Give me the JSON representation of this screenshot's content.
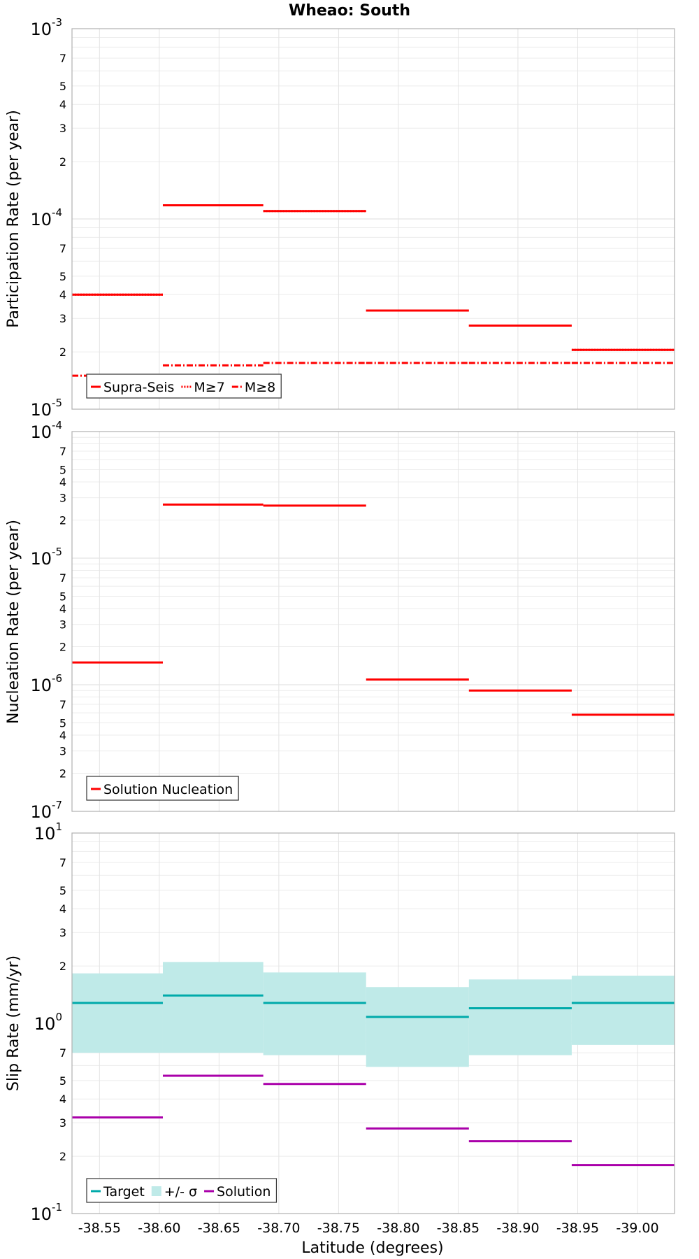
{
  "chart_data": [
    {
      "type": "line",
      "title": "Wheao: South",
      "ylabel": "Participation Rate (per year)",
      "ylog": true,
      "ylim": [
        1e-05,
        0.001
      ],
      "xlim": [
        -38.527,
        -39.031
      ],
      "x_bins": [
        -38.527,
        -38.603,
        -38.687,
        -38.773,
        -38.859,
        -38.945,
        -39.031
      ],
      "grid": true,
      "legend": {
        "placement": "bottom-left",
        "entries": [
          "Supra-Seis",
          "M≥7",
          "M≥8"
        ]
      },
      "series": [
        {
          "name": "Supra-Seis",
          "color": "#ff0000",
          "style": "solid",
          "values": [
            4e-05,
            0.000118,
            0.00011,
            3.3e-05,
            2.75e-05,
            2.05e-05
          ]
        },
        {
          "name": "M≥7",
          "color": "#ff0000",
          "style": "dotted",
          "values": [
            4e-05,
            0.000118,
            0.00011,
            3.3e-05,
            2.75e-05,
            2.05e-05
          ]
        },
        {
          "name": "M≥8",
          "color": "#ff0000",
          "style": "dashdot",
          "values": [
            1.5e-05,
            1.7e-05,
            1.75e-05,
            1.75e-05,
            1.75e-05,
            1.75e-05
          ]
        }
      ]
    },
    {
      "type": "line",
      "ylabel": "Nucleation Rate (per year)",
      "ylog": true,
      "ylim": [
        1e-07,
        0.0001
      ],
      "xlim": [
        -38.527,
        -39.031
      ],
      "x_bins": [
        -38.527,
        -38.603,
        -38.687,
        -38.773,
        -38.859,
        -38.945,
        -39.031
      ],
      "grid": true,
      "legend": {
        "placement": "bottom-left",
        "entries": [
          "Solution Nucleation"
        ]
      },
      "series": [
        {
          "name": "Solution Nucleation",
          "color": "#ff0000",
          "style": "solid",
          "values": [
            1.5e-06,
            2.65e-05,
            2.6e-05,
            1.1e-06,
            9e-07,
            5.8e-07
          ]
        }
      ]
    },
    {
      "type": "area",
      "ylabel": "Slip Rate (mm/yr)",
      "xlabel": "Latitude (degrees)",
      "ylog": true,
      "ylim": [
        0.1,
        10
      ],
      "xlim": [
        -38.527,
        -39.031
      ],
      "x_bins": [
        -38.527,
        -38.603,
        -38.687,
        -38.773,
        -38.859,
        -38.945,
        -39.031
      ],
      "grid": true,
      "legend": {
        "placement": "bottom-left",
        "entries": [
          "Target",
          "+/- σ",
          "Solution"
        ]
      },
      "series": [
        {
          "name": "Target",
          "color": "#00aaaa",
          "style": "solid",
          "values": [
            1.28,
            1.4,
            1.28,
            1.08,
            1.2,
            1.28
          ]
        },
        {
          "name": "+/- σ",
          "color": "#bfeae8",
          "style": "band",
          "lower": [
            0.7,
            0.7,
            0.68,
            0.59,
            0.68,
            0.77
          ],
          "upper": [
            1.83,
            2.1,
            1.85,
            1.55,
            1.7,
            1.78
          ]
        },
        {
          "name": "Solution",
          "color": "#aa00aa",
          "style": "solid",
          "values": [
            0.32,
            0.53,
            0.48,
            0.28,
            0.24,
            0.18
          ]
        }
      ]
    }
  ],
  "axes": {
    "x_ticks": [
      "-38.55",
      "-38.60",
      "-38.65",
      "-38.70",
      "-38.75",
      "-38.80",
      "-38.85",
      "-38.90",
      "-38.95",
      "-39.00"
    ],
    "x_tick_values": [
      -38.55,
      -38.6,
      -38.65,
      -38.7,
      -38.75,
      -38.8,
      -38.85,
      -38.9,
      -38.95,
      -39.0
    ],
    "panel1_major": [
      {
        "base": "10",
        "exp": "-3"
      },
      {
        "base": "10",
        "exp": "-4"
      },
      {
        "base": "10",
        "exp": "-5"
      }
    ],
    "panel2_major": [
      {
        "base": "10",
        "exp": "-4"
      },
      {
        "base": "10",
        "exp": "-5"
      },
      {
        "base": "10",
        "exp": "-6"
      },
      {
        "base": "10",
        "exp": "-7"
      }
    ],
    "panel3_major": [
      {
        "base": "10",
        "exp": "1"
      },
      {
        "base": "10",
        "exp": "0"
      },
      {
        "base": "10",
        "exp": "-1"
      }
    ],
    "minor_labels": [
      "2",
      "3",
      "4",
      "5",
      "7"
    ]
  }
}
